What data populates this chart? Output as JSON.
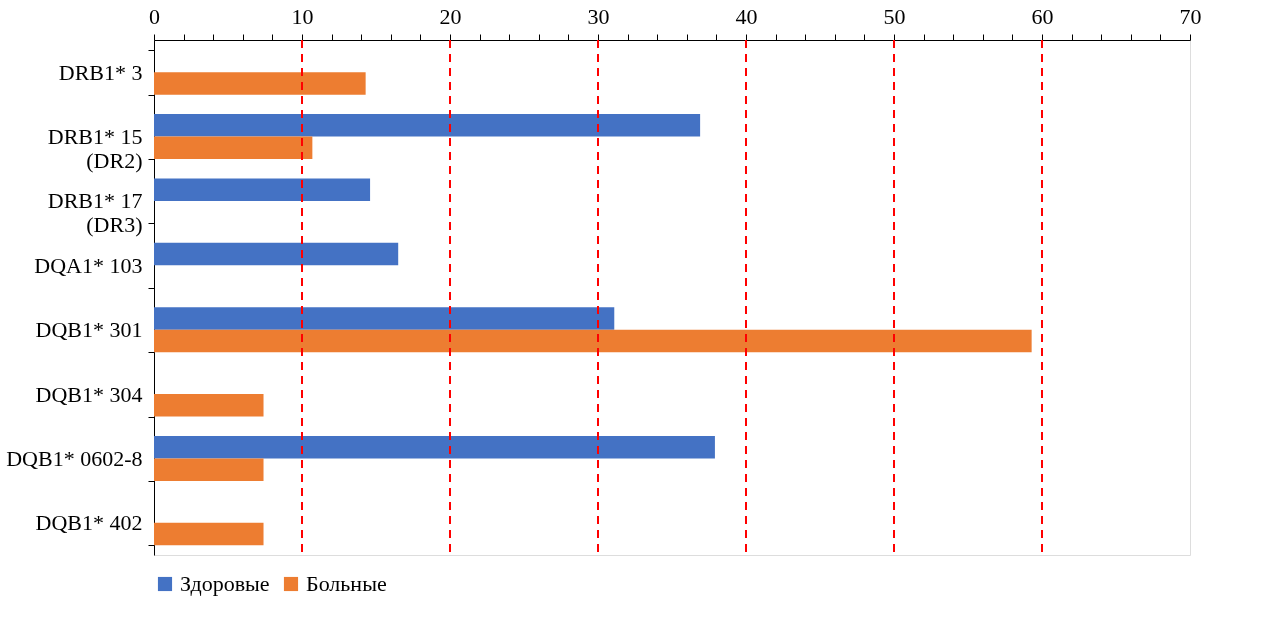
{
  "chart_data": {
    "type": "bar",
    "orientation": "horizontal",
    "categories": [
      "DRB1* 3",
      "DRB1* 15\n(DR2)",
      "DRB1* 17\n(DR3)",
      "DQA1* 103",
      "DQB1* 301",
      "DQB1* 304",
      "DQB1* 0602-8",
      "DQB1* 402"
    ],
    "series": [
      {
        "name": "Здоровые",
        "color": "#4472c4",
        "values": [
          null,
          36.9,
          14.6,
          16.5,
          31.1,
          null,
          37.9,
          null
        ]
      },
      {
        "name": "Больные",
        "color": "#ed7d31",
        "values": [
          14.3,
          10.7,
          null,
          null,
          59.3,
          7.4,
          7.4,
          7.4
        ]
      }
    ],
    "xlim": [
      0,
      70
    ],
    "xticks": [
      0,
      {
        "value": 2,
        "label": null
      },
      {
        "value": 4,
        "label": null
      },
      {
        "value": 6,
        "label": null
      },
      {
        "value": 8,
        "label": null
      },
      10,
      {
        "value": 12,
        "label": null
      },
      {
        "value": 14,
        "label": null
      },
      {
        "value": 16,
        "label": null
      },
      {
        "value": 18,
        "label": null
      },
      20,
      {
        "value": 22,
        "label": null
      },
      {
        "value": 24,
        "label": null
      },
      {
        "value": 26,
        "label": null
      },
      {
        "value": 28,
        "label": null
      },
      30,
      {
        "value": 32,
        "label": null
      },
      {
        "value": 34,
        "label": null
      },
      {
        "value": 36,
        "label": null
      },
      {
        "value": 38,
        "label": null
      },
      40,
      {
        "value": 42,
        "label": null
      },
      {
        "value": 44,
        "label": null
      },
      {
        "value": 46,
        "label": null
      },
      {
        "value": 48,
        "label": null
      },
      50,
      {
        "value": 52,
        "label": null
      },
      {
        "value": 54,
        "label": null
      },
      {
        "value": 56,
        "label": null
      },
      {
        "value": 58,
        "label": null
      },
      60,
      {
        "value": 62,
        "label": null
      },
      {
        "value": 64,
        "label": null
      },
      {
        "value": 66,
        "label": null
      },
      {
        "value": 68,
        "label": null
      },
      70
    ],
    "grid": "x",
    "legend": "bottom"
  }
}
